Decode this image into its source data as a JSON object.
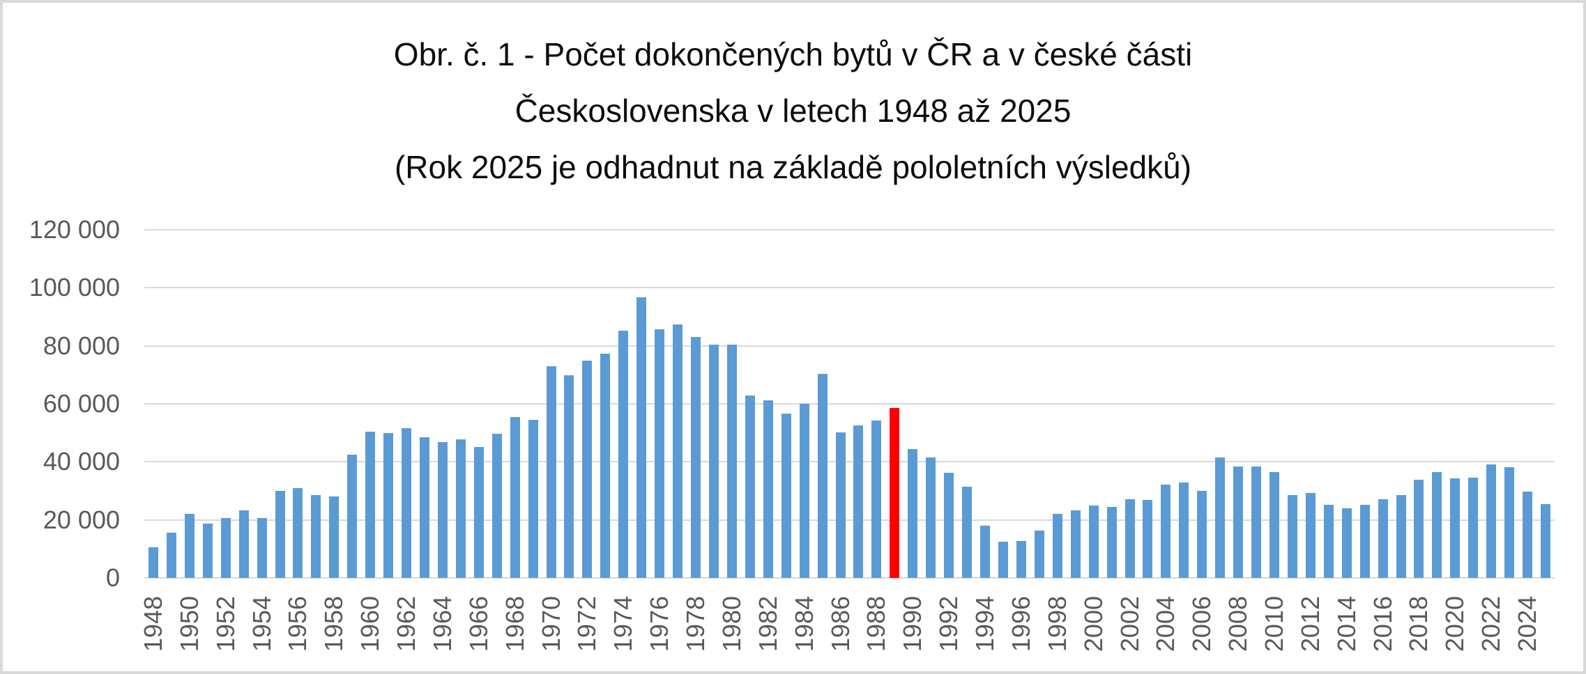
{
  "window": {
    "background": "#ffffff",
    "border_color": "#d9d9d9"
  },
  "chart_data": {
    "type": "bar",
    "title_lines": [
      "Obr. č. 1 - Počet dokončených bytů v ČR a v české části",
      "Československa v letech 1948 až 2025",
      "(Rok 2025 je odhadnut na základě pololetních výsledků)"
    ],
    "xlabel": "",
    "ylabel": "",
    "x": [
      1948,
      1949,
      1950,
      1951,
      1952,
      1953,
      1954,
      1955,
      1956,
      1957,
      1958,
      1959,
      1960,
      1961,
      1962,
      1963,
      1964,
      1965,
      1966,
      1967,
      1968,
      1969,
      1970,
      1971,
      1972,
      1973,
      1974,
      1975,
      1976,
      1977,
      1978,
      1979,
      1980,
      1981,
      1982,
      1983,
      1984,
      1985,
      1986,
      1987,
      1988,
      1989,
      1990,
      1991,
      1992,
      1993,
      1994,
      1995,
      1996,
      1997,
      1998,
      1999,
      2000,
      2001,
      2002,
      2003,
      2004,
      2005,
      2006,
      2007,
      2008,
      2009,
      2010,
      2011,
      2012,
      2013,
      2014,
      2015,
      2016,
      2017,
      2018,
      2019,
      2020,
      2021,
      2022,
      2023,
      2024,
      2025
    ],
    "values": [
      10600,
      15700,
      22200,
      18700,
      20600,
      23300,
      20600,
      30100,
      30900,
      28500,
      28100,
      42500,
      50300,
      49900,
      51700,
      48400,
      46900,
      47800,
      45200,
      49800,
      55400,
      54400,
      73000,
      69800,
      75000,
      77300,
      85200,
      96800,
      85700,
      87400,
      83000,
      80400,
      80500,
      62900,
      61200,
      56600,
      60000,
      70400,
      50200,
      52500,
      54200,
      58600,
      44400,
      41500,
      36300,
      31400,
      18100,
      12400,
      12700,
      16400,
      22100,
      23400,
      24900,
      24500,
      27200,
      27000,
      32200,
      32800,
      30100,
      41600,
      38400,
      38500,
      36400,
      28600,
      29400,
      25200,
      23900,
      25100,
      27200,
      28500,
      33800,
      36400,
      34400,
      34500,
      39200,
      38100,
      29800,
      25500
    ],
    "bar_color": "#5b9bd5",
    "highlight": {
      "year": 1989,
      "color": "#ff0000"
    },
    "ylim": [
      0,
      120000
    ],
    "ytick_step": 20000,
    "ytick_labels": [
      "0",
      "20 000",
      "40 000",
      "60 000",
      "80 000",
      "100 000",
      "120 000"
    ],
    "xtick_years": [
      1948,
      1950,
      1952,
      1954,
      1956,
      1958,
      1960,
      1962,
      1964,
      1966,
      1968,
      1970,
      1972,
      1974,
      1976,
      1978,
      1980,
      1982,
      1984,
      1986,
      1988,
      1990,
      1992,
      1994,
      1996,
      1998,
      2000,
      2002,
      2004,
      2006,
      2008,
      2010,
      2012,
      2014,
      2016,
      2018,
      2020,
      2022,
      2024
    ],
    "grid": "horizontal",
    "legend": "none",
    "gridline_color": "#d9d9d9",
    "axis_label_color": "#595959"
  }
}
